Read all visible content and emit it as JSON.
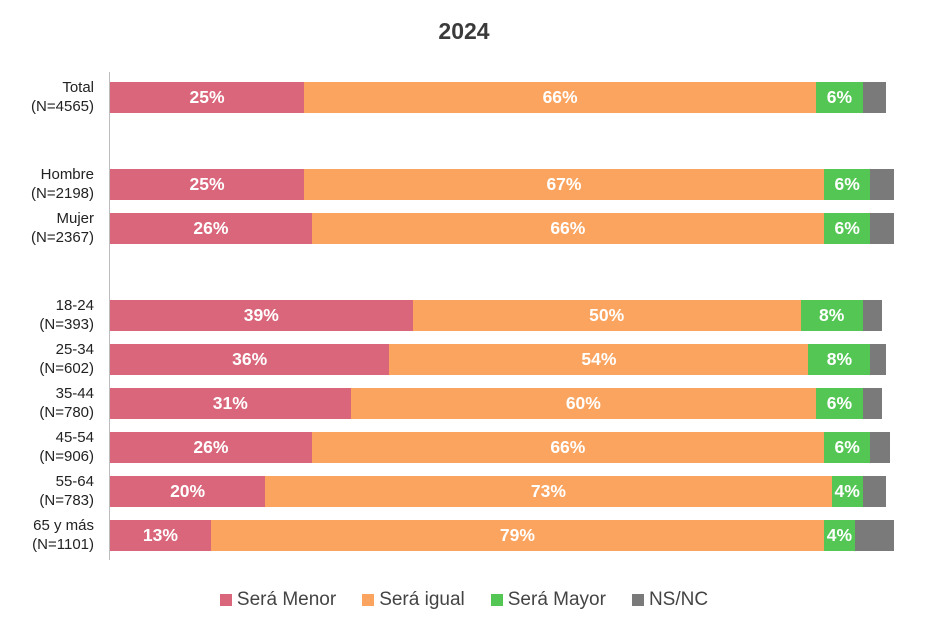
{
  "chart_data": {
    "type": "bar",
    "orientation": "horizontal",
    "stacked": true,
    "title": "2024",
    "categories": [
      {
        "line1": "Total",
        "line2": "(N=4565)"
      },
      {
        "line1": "Hombre",
        "line2": "(N=2198)"
      },
      {
        "line1": "Mujer",
        "line2": "(N=2367)"
      },
      {
        "line1": "18-24",
        "line2": "(N=393)"
      },
      {
        "line1": "25-34",
        "line2": "(N=602)"
      },
      {
        "line1": "35-44",
        "line2": "(N=780)"
      },
      {
        "line1": "45-54",
        "line2": "(N=906)"
      },
      {
        "line1": "55-64",
        "line2": "(N=783)"
      },
      {
        "line1": "65 y más",
        "line2": "(N=1101)"
      }
    ],
    "series": [
      {
        "name": "Será Menor",
        "color": "#d9667a",
        "values": [
          25,
          25,
          26,
          39,
          36,
          31,
          26,
          20,
          13
        ],
        "labels": [
          "25%",
          "25%",
          "26%",
          "39%",
          "36%",
          "31%",
          "26%",
          "20%",
          "13%"
        ]
      },
      {
        "name": "Será igual",
        "color": "#fba45f",
        "values": [
          66,
          67,
          66,
          50,
          54,
          60,
          66,
          73,
          79
        ],
        "labels": [
          "66%",
          "67%",
          "66%",
          "50%",
          "54%",
          "60%",
          "66%",
          "73%",
          "79%"
        ]
      },
      {
        "name": "Será Mayor",
        "color": "#53c653",
        "values": [
          6,
          6,
          6,
          8,
          8,
          6,
          6,
          4,
          4
        ],
        "labels": [
          "6%",
          "6%",
          "6%",
          "8%",
          "8%",
          "6%",
          "6%",
          "4%",
          "4%"
        ]
      },
      {
        "name": "NS/NC",
        "color": "#7a7a7a",
        "values": [
          3,
          3,
          3,
          2.5,
          2,
          2.5,
          2.5,
          3,
          5
        ],
        "labels": [
          "",
          "",
          "",
          "",
          "",
          "",
          "",
          "",
          ""
        ]
      }
    ],
    "xlim": [
      0,
      100
    ],
    "legend": "bottom"
  }
}
